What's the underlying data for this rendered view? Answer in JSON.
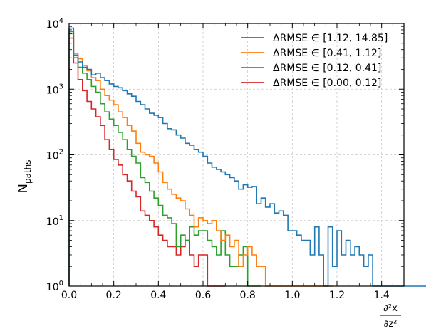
{
  "chart_data": {
    "type": "histogram-step",
    "title": "",
    "xlabel": {
      "numerator": "∂²x",
      "denominator": "∂z²"
    },
    "ylabel": {
      "main": "N",
      "sub": "paths"
    },
    "xlim": [
      0.0,
      1.5
    ],
    "ylim": [
      1,
      10000
    ],
    "yscale": "log",
    "grid": true,
    "legend_position": "top-right",
    "xticks": [
      0.0,
      0.2,
      0.4,
      0.6,
      0.8,
      1.0,
      1.2,
      1.4
    ],
    "xtick_labels": [
      "0.0",
      "0.2",
      "0.4",
      "0.6",
      "0.8",
      "1.0",
      "1.2",
      "1.4"
    ],
    "yticks": [
      1,
      10,
      100,
      1000,
      10000
    ],
    "ytick_labels": [
      {
        "base": "10",
        "exp": "0"
      },
      {
        "base": "10",
        "exp": "1"
      },
      {
        "base": "10",
        "exp": "2"
      },
      {
        "base": "10",
        "exp": "3"
      },
      {
        "base": "10",
        "exp": "4"
      }
    ],
    "bin_width": 0.02,
    "series": [
      {
        "name": "ΔRMSE ∈ [1.12, 14.85]",
        "color": "#1f77b4",
        "values": [
          8500,
          3300,
          2600,
          2150,
          2000,
          1650,
          1750,
          1500,
          1350,
          1200,
          1100,
          1050,
          950,
          850,
          780,
          650,
          580,
          500,
          430,
          400,
          370,
          300,
          250,
          240,
          200,
          180,
          150,
          140,
          120,
          110,
          95,
          75,
          65,
          60,
          55,
          50,
          45,
          40,
          30,
          35,
          32,
          33,
          18,
          22,
          16,
          18,
          13,
          14,
          12,
          7,
          7,
          6,
          5,
          5,
          3,
          8,
          3,
          1,
          8,
          2,
          7,
          3,
          5,
          3,
          4,
          3,
          2,
          3,
          1,
          1,
          1,
          0,
          0,
          0,
          1,
          0,
          0,
          1,
          1,
          0
        ]
      },
      {
        "name": "ΔRMSE ∈ [0.41, 1.12]",
        "color": "#ff7f0e",
        "values": [
          7000,
          3500,
          2900,
          2300,
          1900,
          1500,
          1350,
          1000,
          800,
          680,
          580,
          450,
          370,
          280,
          230,
          150,
          110,
          100,
          95,
          75,
          55,
          38,
          30,
          25,
          22,
          20,
          15,
          12,
          8,
          11,
          10,
          9,
          10,
          7,
          5,
          6,
          4,
          5,
          2,
          3,
          4,
          3,
          2,
          2,
          1,
          0,
          0,
          0,
          0,
          0,
          0,
          0,
          0,
          0,
          0,
          0,
          0,
          1,
          0
        ]
      },
      {
        "name": "ΔRMSE ∈ [0.12, 0.41]",
        "color": "#2ca02c",
        "values": [
          7500,
          3000,
          2150,
          1750,
          1400,
          1100,
          900,
          600,
          450,
          350,
          280,
          220,
          170,
          120,
          95,
          75,
          45,
          38,
          28,
          22,
          17,
          12,
          11,
          9,
          4,
          6,
          5,
          8,
          6,
          7,
          7,
          5,
          4,
          3,
          7,
          3,
          2,
          2,
          3,
          4,
          1,
          1,
          1
        ]
      },
      {
        "name": "ΔRMSE ∈ [0.00, 0.12]",
        "color": "#d62728",
        "values": [
          6000,
          2500,
          1400,
          950,
          650,
          500,
          380,
          280,
          170,
          120,
          85,
          70,
          50,
          40,
          28,
          23,
          14,
          12,
          10,
          8,
          6,
          5,
          4,
          4,
          3,
          4,
          5,
          3,
          2,
          3,
          3,
          1,
          1,
          0,
          1
        ]
      }
    ]
  }
}
